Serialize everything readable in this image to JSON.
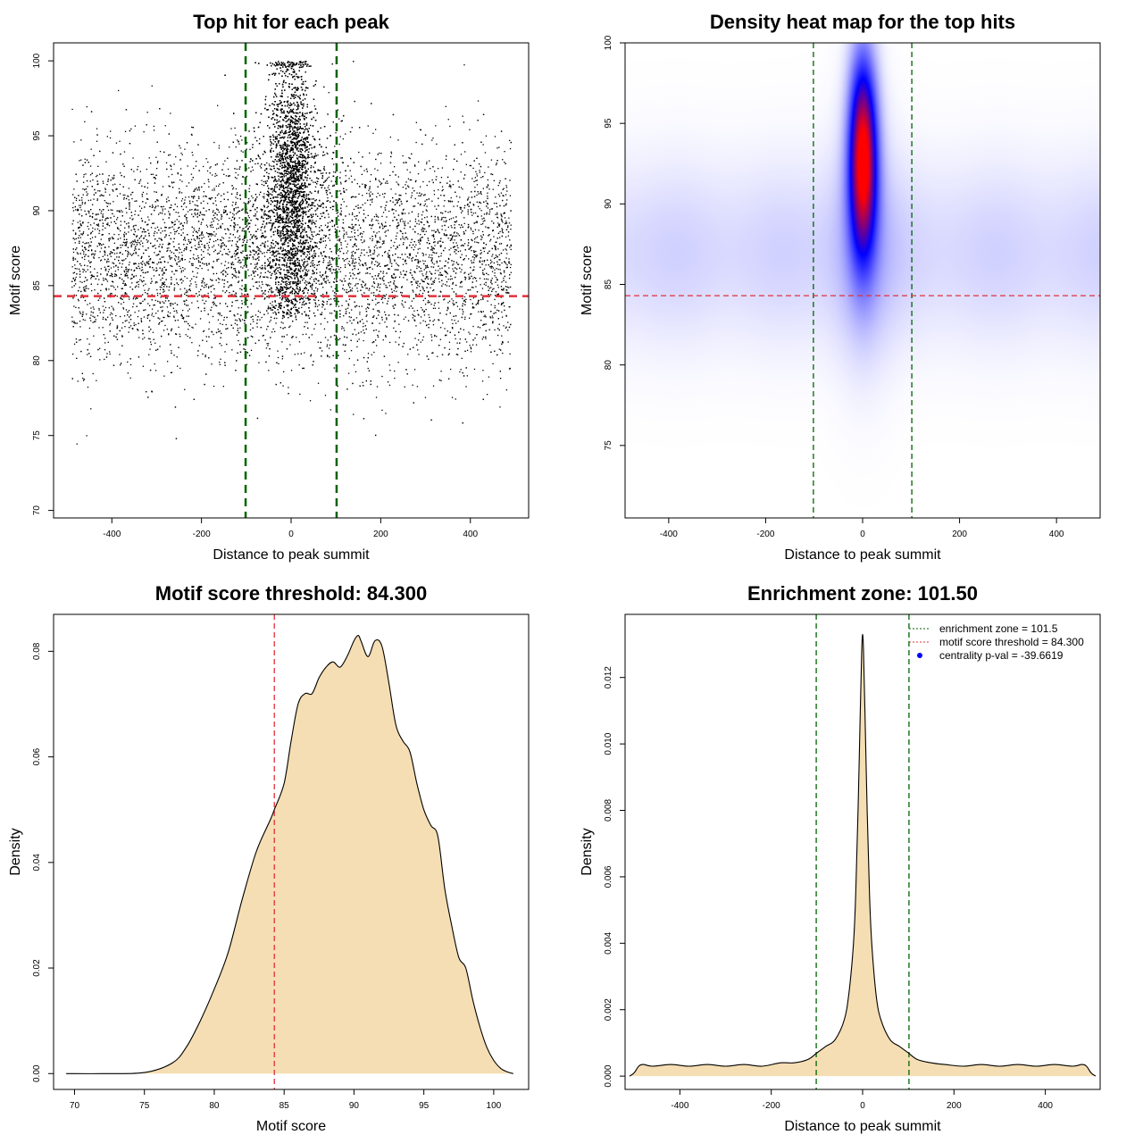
{
  "colors": {
    "zone": "#006400",
    "threshold": "#e0303a",
    "fill": "#f5deb3",
    "points": "#000000",
    "heat_low": "#ffffff",
    "heat_mid": "#0000ff",
    "heat_high": "#ff0000",
    "legend_point": "#0000ff"
  },
  "chart_data": [
    {
      "id": "scatter",
      "type": "scatter",
      "title": "Top hit for each peak",
      "xlabel": "Distance to peak summit",
      "ylabel": "Motif score",
      "xlim": [
        -530,
        530
      ],
      "ylim": [
        69.5,
        101.2
      ],
      "xticks": [
        -400,
        -200,
        0,
        200,
        400
      ],
      "yticks": [
        70,
        75,
        80,
        85,
        90,
        95,
        100
      ],
      "vlines": [
        -101.5,
        101.5
      ],
      "hline": 84.3,
      "point_model": {
        "background_x_range": [
          -490,
          490
        ],
        "background_score_mean": 87.0,
        "background_score_sd": 3.6,
        "central_score_mean": 91.5,
        "central_score_sd": 4.5,
        "central_x_sd": 22,
        "score_max": 100,
        "point_counts": {
          "background": 7500,
          "central": 8000
        }
      }
    },
    {
      "id": "heatmap",
      "type": "heatmap",
      "title": "Density heat map for the top hits",
      "xlabel": "Distance to peak summit",
      "ylabel": "Motif score",
      "xlim": [
        -490,
        490
      ],
      "ylim": [
        70.5,
        100
      ],
      "xticks": [
        -400,
        -200,
        0,
        200,
        400
      ],
      "yticks": [
        75,
        80,
        85,
        90,
        95,
        100
      ],
      "vlines": [
        -101.5,
        101.5
      ],
      "hline": 84.3,
      "density_model": {
        "peak_center": [
          0,
          93
        ],
        "peak_x_sd": 20,
        "peak_score_sd": 4.2,
        "background_score_mean": 87,
        "background_score_sd": 4.0
      }
    },
    {
      "id": "score-density",
      "type": "area",
      "title": "Motif score threshold: 84.300",
      "xlabel": "Motif score",
      "ylabel": "Density",
      "xlim": [
        68.5,
        102.5
      ],
      "ylim": [
        -0.003,
        0.087
      ],
      "xticks": [
        70,
        75,
        80,
        85,
        90,
        95,
        100
      ],
      "yticks": [
        0.0,
        0.02,
        0.04,
        0.06,
        0.08
      ],
      "ytick_labels": [
        "0.00",
        "0.02",
        "0.04",
        "0.06",
        "0.08"
      ],
      "vline": 84.3,
      "x": [
        69.4,
        72,
        75,
        77,
        78,
        79,
        80,
        81,
        82,
        83,
        84,
        84.3,
        85,
        85.5,
        86,
        86.5,
        87,
        87.5,
        88,
        88.5,
        89,
        89.5,
        90,
        90.3,
        90.5,
        91,
        91.5,
        92,
        92.5,
        93,
        93.5,
        94,
        94.5,
        95,
        95.5,
        96,
        96.5,
        97,
        97.5,
        98,
        98.5,
        99,
        99.5,
        100,
        100.5,
        101,
        101.4
      ],
      "y": [
        0.0,
        0.0,
        0.0002,
        0.002,
        0.005,
        0.01,
        0.016,
        0.023,
        0.033,
        0.042,
        0.048,
        0.05,
        0.055,
        0.063,
        0.07,
        0.072,
        0.072,
        0.075,
        0.077,
        0.078,
        0.077,
        0.079,
        0.082,
        0.083,
        0.082,
        0.079,
        0.082,
        0.081,
        0.074,
        0.066,
        0.063,
        0.061,
        0.055,
        0.05,
        0.047,
        0.045,
        0.035,
        0.028,
        0.022,
        0.02,
        0.014,
        0.009,
        0.005,
        0.0025,
        0.001,
        0.0003,
        0.0
      ]
    },
    {
      "id": "distance-density",
      "type": "area",
      "title": "Enrichment zone: 101.50",
      "xlabel": "Distance to peak summit",
      "ylabel": "Density",
      "xlim": [
        -520,
        520
      ],
      "ylim": [
        -0.0004,
        0.0139
      ],
      "xticks": [
        -400,
        -200,
        0,
        200,
        400
      ],
      "yticks": [
        0.0,
        0.002,
        0.004,
        0.006,
        0.008,
        0.01,
        0.012
      ],
      "ytick_labels": [
        "0.000",
        "0.002",
        "0.004",
        "0.006",
        "0.008",
        "0.010",
        "0.012"
      ],
      "vlines": [
        -101.5,
        101.5
      ],
      "x": [
        -510,
        -500,
        -490,
        -480,
        -460,
        -420,
        -380,
        -340,
        -300,
        -260,
        -220,
        -180,
        -150,
        -120,
        -100,
        -80,
        -60,
        -40,
        -30,
        -20,
        -15,
        -10,
        -5,
        -2,
        0,
        2,
        5,
        10,
        15,
        20,
        30,
        40,
        60,
        80,
        100,
        120,
        150,
        180,
        220,
        260,
        300,
        340,
        380,
        420,
        460,
        480,
        490,
        500,
        510
      ],
      "y": [
        0.0,
        0.0001,
        0.0003,
        0.00035,
        0.0003,
        0.00035,
        0.0003,
        0.00035,
        0.0003,
        0.00035,
        0.0003,
        0.0004,
        0.0004,
        0.0005,
        0.0007,
        0.0009,
        0.0011,
        0.0017,
        0.0025,
        0.004,
        0.0055,
        0.008,
        0.011,
        0.0128,
        0.0133,
        0.0128,
        0.011,
        0.008,
        0.0055,
        0.004,
        0.0024,
        0.0017,
        0.0011,
        0.0009,
        0.0007,
        0.0005,
        0.0004,
        0.00035,
        0.0003,
        0.00035,
        0.0003,
        0.00035,
        0.0003,
        0.00035,
        0.0003,
        0.00035,
        0.0003,
        0.0001,
        0.0
      ]
    }
  ],
  "legend": {
    "entries": [
      {
        "label": "enrichment zone = 101.5",
        "kind": "line",
        "color": "#006400"
      },
      {
        "label": "motif score threshold = 84.300",
        "kind": "line",
        "color": "#e0303a"
      },
      {
        "label": "centrality p-val = -39.6619",
        "kind": "point",
        "color": "#0000ff"
      }
    ]
  }
}
